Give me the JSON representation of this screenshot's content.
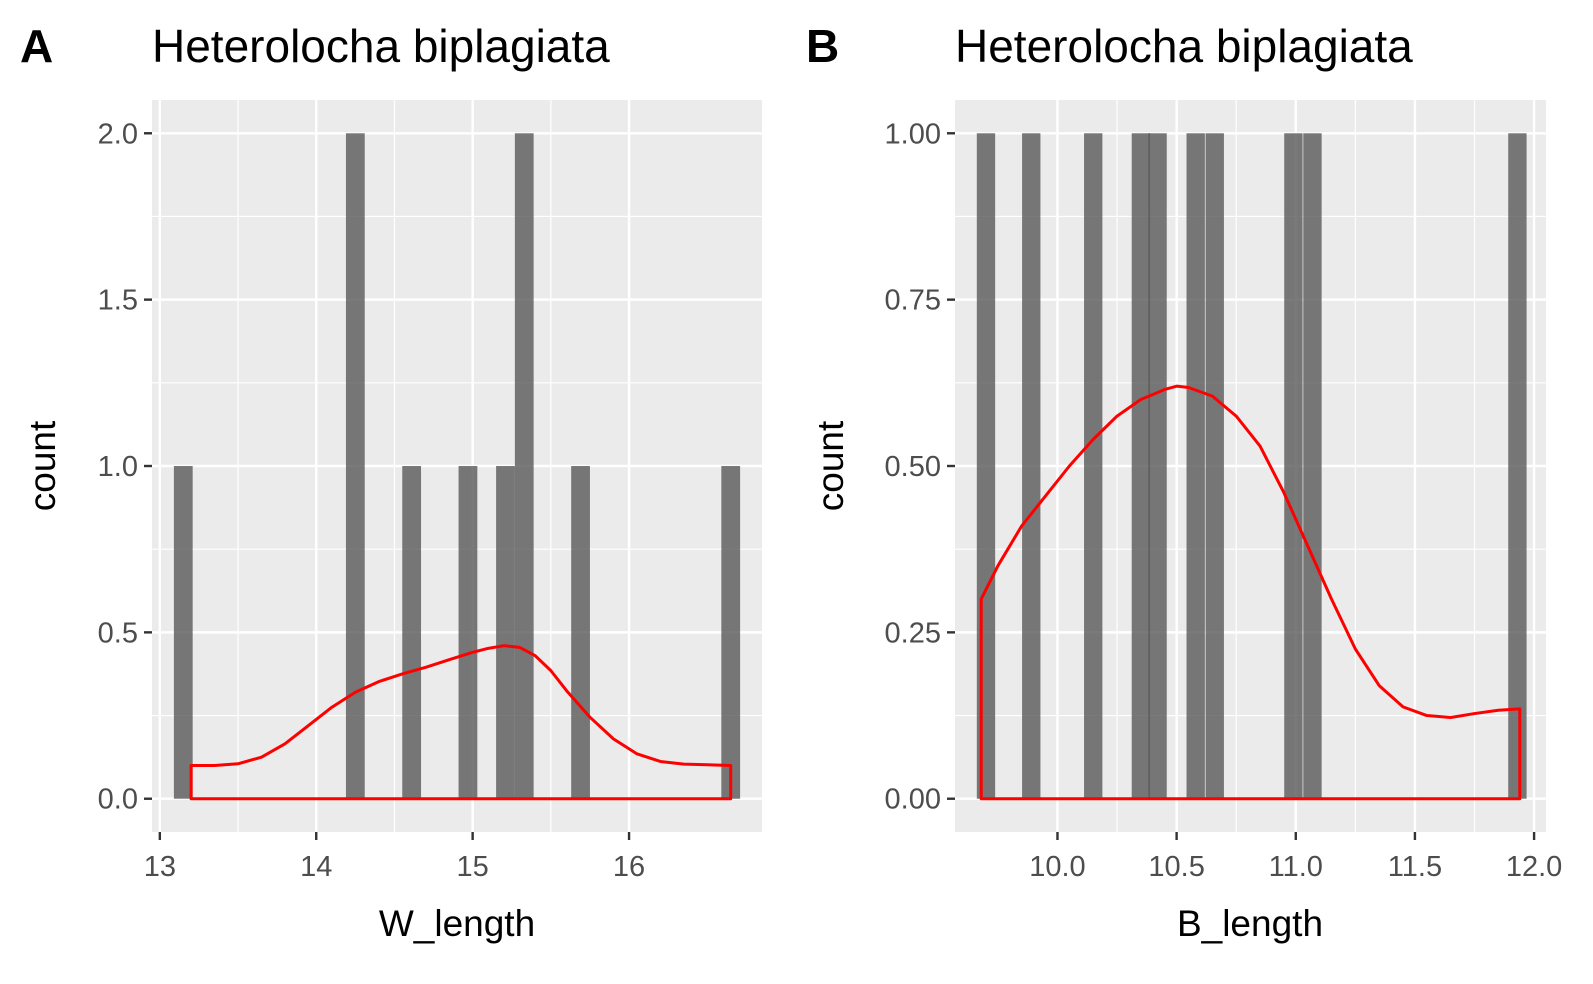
{
  "chart_data": [
    {
      "type": "bar",
      "tag": "A",
      "title": "Heterolocha biplagiata",
      "xlabel": "W_length",
      "ylabel": "count",
      "xlim": [
        12.95,
        16.85
      ],
      "ylim": [
        -0.1,
        2.1
      ],
      "x_ticks": [
        13,
        14,
        15,
        16
      ],
      "x_tick_labels": [
        "13",
        "14",
        "15",
        "16"
      ],
      "y_ticks": [
        0,
        0.5,
        1,
        1.5,
        2
      ],
      "y_tick_labels": [
        "0.0",
        "0.5",
        "1.0",
        "1.5",
        "2.0"
      ],
      "bar_width": 0.12,
      "bars": [
        {
          "x": 13.15,
          "count": 1
        },
        {
          "x": 14.25,
          "count": 2
        },
        {
          "x": 14.61,
          "count": 1
        },
        {
          "x": 14.97,
          "count": 1
        },
        {
          "x": 15.21,
          "count": 1
        },
        {
          "x": 15.33,
          "count": 2
        },
        {
          "x": 15.69,
          "count": 1
        },
        {
          "x": 16.65,
          "count": 1
        }
      ],
      "density": {
        "x": [
          13.2,
          13.35,
          13.5,
          13.65,
          13.8,
          13.95,
          14.1,
          14.25,
          14.4,
          14.55,
          14.7,
          14.85,
          15.0,
          15.1,
          15.2,
          15.3,
          15.4,
          15.5,
          15.6,
          15.75,
          15.9,
          16.05,
          16.2,
          16.35,
          16.5,
          16.65
        ],
        "y": [
          0.1,
          0.1,
          0.105,
          0.125,
          0.165,
          0.22,
          0.275,
          0.32,
          0.352,
          0.375,
          0.395,
          0.418,
          0.44,
          0.452,
          0.46,
          0.455,
          0.43,
          0.385,
          0.325,
          0.245,
          0.18,
          0.135,
          0.112,
          0.104,
          0.102,
          0.1
        ]
      }
    },
    {
      "type": "bar",
      "tag": "B",
      "title": "Heterolocha biplagiata",
      "xlabel": "B_length",
      "ylabel": "count",
      "xlim": [
        9.57,
        12.05
      ],
      "ylim": [
        -0.05,
        1.05
      ],
      "x_ticks": [
        10.0,
        10.5,
        11.0,
        11.5,
        12.0
      ],
      "x_tick_labels": [
        "10.0",
        "10.5",
        "11.0",
        "11.5",
        "12.0"
      ],
      "y_ticks": [
        0,
        0.25,
        0.5,
        0.75,
        1
      ],
      "y_tick_labels": [
        "0.00",
        "0.25",
        "0.50",
        "0.75",
        "1.00"
      ],
      "bar_width": 0.077,
      "bars": [
        {
          "x": 9.7,
          "count": 1
        },
        {
          "x": 9.89,
          "count": 1
        },
        {
          "x": 10.15,
          "count": 1
        },
        {
          "x": 10.35,
          "count": 1
        },
        {
          "x": 10.42,
          "count": 1
        },
        {
          "x": 10.58,
          "count": 1
        },
        {
          "x": 10.66,
          "count": 1
        },
        {
          "x": 10.99,
          "count": 1
        },
        {
          "x": 11.07,
          "count": 1
        },
        {
          "x": 11.93,
          "count": 1
        }
      ],
      "density": {
        "x": [
          9.68,
          9.75,
          9.85,
          9.95,
          10.05,
          10.15,
          10.25,
          10.35,
          10.45,
          10.5,
          10.55,
          10.65,
          10.75,
          10.85,
          10.95,
          11.05,
          11.15,
          11.25,
          11.35,
          11.45,
          11.55,
          11.65,
          11.75,
          11.85,
          11.94
        ],
        "y": [
          0.3,
          0.35,
          0.41,
          0.455,
          0.5,
          0.54,
          0.575,
          0.6,
          0.615,
          0.62,
          0.618,
          0.605,
          0.575,
          0.53,
          0.46,
          0.38,
          0.3,
          0.225,
          0.17,
          0.138,
          0.125,
          0.122,
          0.128,
          0.133,
          0.135
        ]
      }
    }
  ]
}
